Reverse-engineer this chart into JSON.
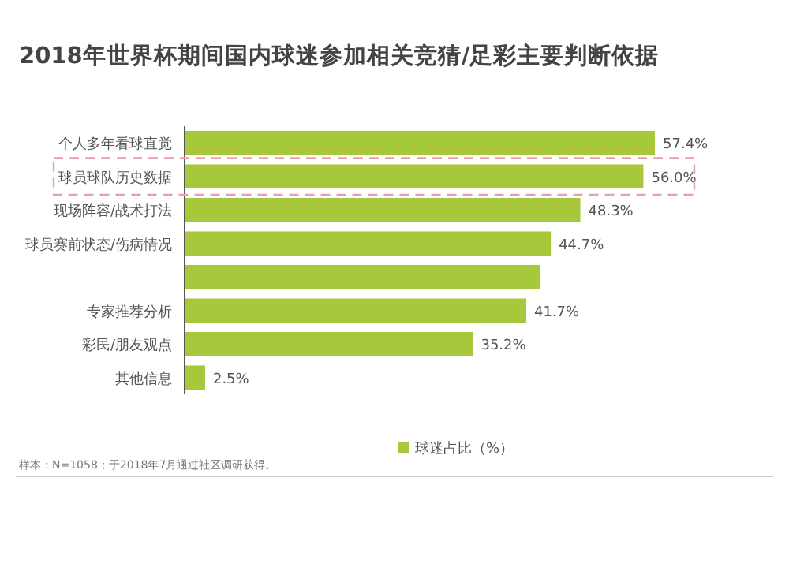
{
  "chart_data": {
    "type": "bar",
    "orientation": "horizontal",
    "title": "2018年世界杯期间国内球迷参加相关竞猜/足彩主要判断依据",
    "categories": [
      "个人多年看球直觉",
      "球员球队历史数据",
      "现场阵容/战术打法",
      "球员赛前状态/伤病情况",
      null,
      "专家推荐分析",
      "彩民/朋友观点",
      "其他信息"
    ],
    "series": [
      {
        "name": "球迷占比（%）",
        "color": "#a8c83c",
        "values": [
          57.4,
          56.0,
          48.3,
          44.7,
          43.4,
          41.7,
          35.2,
          2.5
        ],
        "value_labels": [
          "57.4%",
          "56.0%",
          "48.3%",
          "44.7%",
          null,
          "41.7%",
          "35.2%",
          "2.5%"
        ]
      }
    ],
    "legend": "bottom",
    "annotations": [
      "样本：N=1058；于2018年7月通过社区调研获得。"
    ]
  }
}
